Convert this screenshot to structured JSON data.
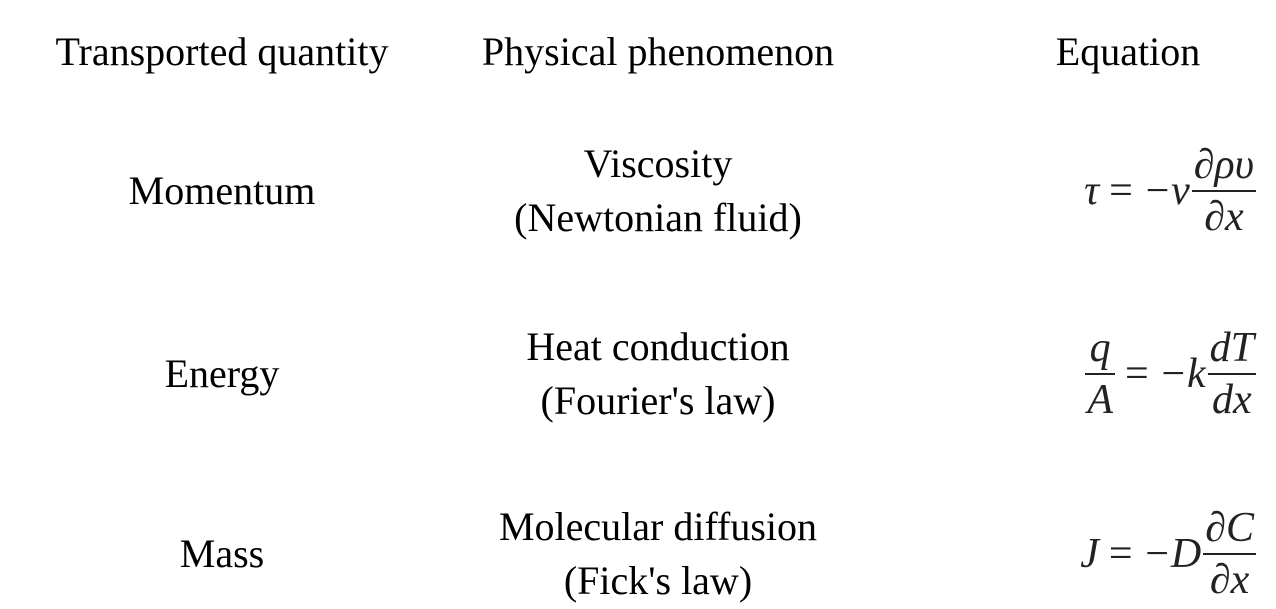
{
  "headers": {
    "quantity": "Transported quantity",
    "phenomenon": "Physical phenomenon",
    "equation": "Equation"
  },
  "rows": [
    {
      "quantity": "Momentum",
      "phenomenon_line1": "Viscosity",
      "phenomenon_line2": "(Newtonian fluid)",
      "eq": {
        "lhs": "τ",
        "equals": "=",
        "coef": "−ν",
        "num": "∂ρυ",
        "den": "∂x"
      }
    },
    {
      "quantity": "Energy",
      "phenomenon_line1": "Heat conduction",
      "phenomenon_line2": "(Fourier's law)",
      "eq": {
        "lhs_num": "q",
        "lhs_den": "A",
        "equals": "=",
        "coef": "−k",
        "num": "dT",
        "den": "dx"
      }
    },
    {
      "quantity": "Mass",
      "phenomenon_line1": "Molecular diffusion",
      "phenomenon_line2": "(Fick's law)",
      "eq": {
        "lhs": "J",
        "equals": "=",
        "coef": "−D",
        "num": "∂C",
        "den": "∂x"
      }
    }
  ]
}
